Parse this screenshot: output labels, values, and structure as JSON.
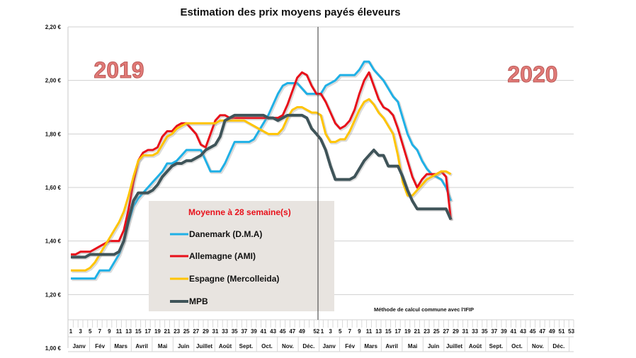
{
  "chart_data": {
    "type": "line",
    "title": "Estimation des prix moyens payés éleveurs",
    "ylabel": "",
    "xlabel": "",
    "ylim": [
      1.0,
      2.2
    ],
    "y_ticks": [
      "1,00 €",
      "1,20 €",
      "1,40 €",
      "1,60 €",
      "1,80 €",
      "2,00 €",
      "2,20 €"
    ],
    "y_tick_values": [
      1.0,
      1.2,
      1.4,
      1.6,
      1.8,
      2.0,
      2.2
    ],
    "grid": "horizontal",
    "year_labels": [
      "2019",
      "2020"
    ],
    "x_weeks_2019": [
      1,
      2,
      3,
      4,
      5,
      6,
      7,
      8,
      9,
      10,
      11,
      12,
      13,
      14,
      15,
      16,
      17,
      18,
      19,
      20,
      21,
      22,
      23,
      24,
      25,
      26,
      27,
      28,
      29,
      30,
      31,
      32,
      33,
      34,
      35,
      36,
      37,
      38,
      39,
      40,
      41,
      42,
      43,
      44,
      45,
      46,
      47,
      48,
      49,
      50,
      51,
      52
    ],
    "x_weeks_2020": [
      1,
      2,
      3,
      4,
      5,
      6,
      7,
      8,
      9,
      10,
      11,
      12,
      13,
      14,
      15,
      16,
      17,
      18,
      19,
      20,
      21,
      22,
      23,
      24,
      25,
      26,
      27,
      28
    ],
    "x_tick_labels_2019": [
      "1",
      "3",
      "5",
      "7",
      "9",
      "11",
      "13",
      "15",
      "17",
      "19",
      "21",
      "23",
      "25",
      "27",
      "29",
      "31",
      "33",
      "35",
      "37",
      "39",
      "41",
      "43",
      "45",
      "47",
      "49",
      "52"
    ],
    "x_tick_labels_2020": [
      "1",
      "3",
      "5",
      "7",
      "9",
      "11",
      "13",
      "15",
      "17",
      "19",
      "21",
      "23",
      "25",
      "27",
      "29",
      "31",
      "33",
      "35",
      "37",
      "39",
      "41",
      "43",
      "45",
      "47",
      "49",
      "51",
      "53"
    ],
    "months": [
      "Janv",
      "Fév",
      "Mars",
      "Avril",
      "Mai",
      "Juin",
      "Juillet",
      "Août",
      "Sept.",
      "Oct.",
      "Nov.",
      "Déc."
    ],
    "legend": {
      "title": "Moyenne à  28 semaine(s)",
      "placement": "center-left"
    },
    "note": "Méthode de calcul commune avec l'IFIP",
    "series": [
      {
        "name": "Danemark (D.M.A)",
        "color": "#1fb0e6",
        "values_2019": [
          1.26,
          1.26,
          1.26,
          1.26,
          1.26,
          1.26,
          1.29,
          1.29,
          1.29,
          1.32,
          1.35,
          1.4,
          1.47,
          1.53,
          1.56,
          1.58,
          1.6,
          1.62,
          1.64,
          1.66,
          1.69,
          1.69,
          1.7,
          1.72,
          1.74,
          1.74,
          1.74,
          1.74,
          1.7,
          1.66,
          1.66,
          1.66,
          1.69,
          1.73,
          1.77,
          1.77,
          1.77,
          1.77,
          1.78,
          1.81,
          1.84,
          1.87,
          1.91,
          1.95,
          1.98,
          1.99,
          1.99,
          1.99,
          1.97,
          1.95,
          1.95,
          1.95
        ],
        "values_2020": [
          1.95,
          1.98,
          1.99,
          2.0,
          2.02,
          2.02,
          2.02,
          2.02,
          2.04,
          2.07,
          2.07,
          2.04,
          2.02,
          2.0,
          1.97,
          1.94,
          1.92,
          1.86,
          1.8,
          1.76,
          1.74,
          1.7,
          1.67,
          1.65,
          1.64,
          1.63,
          1.6,
          1.55
        ]
      },
      {
        "name": "Allemagne (AMI)",
        "color": "#e8101a",
        "values_2019": [
          1.35,
          1.35,
          1.36,
          1.36,
          1.36,
          1.37,
          1.38,
          1.39,
          1.4,
          1.4,
          1.4,
          1.44,
          1.52,
          1.62,
          1.7,
          1.73,
          1.74,
          1.74,
          1.75,
          1.79,
          1.81,
          1.81,
          1.83,
          1.84,
          1.84,
          1.82,
          1.8,
          1.76,
          1.75,
          1.8,
          1.85,
          1.87,
          1.87,
          1.86,
          1.86,
          1.86,
          1.86,
          1.86,
          1.86,
          1.86,
          1.86,
          1.86,
          1.86,
          1.86,
          1.87,
          1.91,
          1.96,
          2.01,
          2.03,
          2.02,
          1.98,
          1.95
        ],
        "values_2020": [
          1.95,
          1.92,
          1.88,
          1.84,
          1.82,
          1.83,
          1.85,
          1.89,
          1.95,
          2.0,
          2.03,
          1.98,
          1.93,
          1.9,
          1.89,
          1.87,
          1.82,
          1.76,
          1.7,
          1.64,
          1.6,
          1.63,
          1.65,
          1.65,
          1.65,
          1.66,
          1.64,
          1.48
        ]
      },
      {
        "name": "Espagne (Mercolleida)",
        "color": "#ffc400",
        "values_2019": [
          1.29,
          1.29,
          1.29,
          1.29,
          1.3,
          1.32,
          1.35,
          1.38,
          1.41,
          1.44,
          1.47,
          1.51,
          1.57,
          1.64,
          1.7,
          1.72,
          1.72,
          1.72,
          1.73,
          1.76,
          1.79,
          1.8,
          1.82,
          1.83,
          1.84,
          1.84,
          1.84,
          1.84,
          1.84,
          1.84,
          1.84,
          1.85,
          1.85,
          1.85,
          1.85,
          1.85,
          1.85,
          1.84,
          1.83,
          1.82,
          1.81,
          1.8,
          1.8,
          1.8,
          1.82,
          1.86,
          1.89,
          1.9,
          1.9,
          1.89,
          1.88,
          1.88
        ],
        "values_2020": [
          1.87,
          1.8,
          1.77,
          1.77,
          1.78,
          1.78,
          1.81,
          1.85,
          1.89,
          1.92,
          1.93,
          1.91,
          1.88,
          1.86,
          1.83,
          1.8,
          1.72,
          1.62,
          1.57,
          1.57,
          1.59,
          1.61,
          1.63,
          1.64,
          1.65,
          1.66,
          1.66,
          1.65
        ]
      },
      {
        "name": "MPB",
        "color": "#3f5459",
        "values_2019": [
          1.34,
          1.34,
          1.34,
          1.34,
          1.35,
          1.35,
          1.35,
          1.35,
          1.35,
          1.35,
          1.36,
          1.4,
          1.48,
          1.55,
          1.58,
          1.58,
          1.58,
          1.59,
          1.61,
          1.64,
          1.66,
          1.68,
          1.69,
          1.69,
          1.7,
          1.7,
          1.71,
          1.72,
          1.74,
          1.75,
          1.76,
          1.79,
          1.85,
          1.86,
          1.87,
          1.87,
          1.87,
          1.87,
          1.87,
          1.87,
          1.87,
          1.86,
          1.86,
          1.85,
          1.86,
          1.87,
          1.87,
          1.87,
          1.87,
          1.86,
          1.82,
          1.8
        ],
        "values_2020": [
          1.78,
          1.74,
          1.68,
          1.63,
          1.63,
          1.63,
          1.63,
          1.64,
          1.67,
          1.7,
          1.72,
          1.74,
          1.72,
          1.72,
          1.68,
          1.68,
          1.68,
          1.64,
          1.59,
          1.55,
          1.52,
          1.52,
          1.52,
          1.52,
          1.52,
          1.52,
          1.52,
          1.48
        ]
      }
    ]
  }
}
